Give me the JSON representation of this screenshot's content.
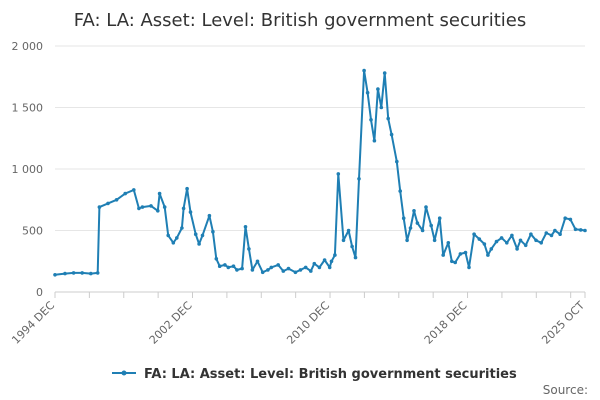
{
  "chart_data": {
    "type": "line",
    "title": "FA: LA: Asset: Level: British government securities",
    "xlabel": "",
    "ylabel": "",
    "ylim": [
      0,
      2000
    ],
    "y_ticks": [
      0,
      500,
      1000,
      1500,
      2000
    ],
    "y_tick_labels": [
      "0",
      "500",
      "1 000",
      "1 500",
      "2 000"
    ],
    "x_tick_labels": [
      "1994 DEC",
      "2002 DEC",
      "2010 DEC",
      "2018 DEC",
      "2025 OCT"
    ],
    "x_tick_positions": [
      1994.917,
      2002.917,
      2010.917,
      2018.917,
      2025.75
    ],
    "xlim": [
      1994.917,
      2025.75
    ],
    "grid": "horizontal",
    "legend_position": "bottom",
    "color": "#1f7fb4",
    "series": [
      {
        "name": "FA: LA: Asset: Level: British government securities",
        "x": [
          1994.917,
          1995.5,
          1996.0,
          1996.5,
          1997.0,
          1997.4,
          1997.5,
          1998.0,
          1998.5,
          1999.0,
          1999.5,
          1999.8,
          2000.0,
          2000.5,
          2000.9,
          2001.0,
          2001.3,
          2001.5,
          2001.8,
          2002.0,
          2002.3,
          2002.4,
          2002.6,
          2002.8,
          2003.1,
          2003.3,
          2003.5,
          2003.9,
          2004.1,
          2004.3,
          2004.5,
          2004.8,
          2005.0,
          2005.3,
          2005.5,
          2005.8,
          2006.0,
          2006.2,
          2006.4,
          2006.7,
          2007.0,
          2007.3,
          2007.5,
          2007.9,
          2008.2,
          2008.5,
          2008.9,
          2009.2,
          2009.5,
          2009.8,
          2010.0,
          2010.3,
          2010.6,
          2010.9,
          2011.0,
          2011.2,
          2011.4,
          2011.7,
          2012.0,
          2012.2,
          2012.4,
          2012.6,
          2012.9,
          2013.1,
          2013.3,
          2013.5,
          2013.7,
          2013.9,
          2014.1,
          2014.3,
          2014.5,
          2014.8,
          2015.0,
          2015.2,
          2015.4,
          2015.6,
          2015.8,
          2016.0,
          2016.3,
          2016.5,
          2016.8,
          2017.0,
          2017.3,
          2017.5,
          2017.8,
          2018.0,
          2018.2,
          2018.5,
          2018.8,
          2019.0,
          2019.3,
          2019.6,
          2019.9,
          2020.1,
          2020.3,
          2020.6,
          2020.9,
          2021.2,
          2021.5,
          2021.8,
          2022.0,
          2022.3,
          2022.6,
          2022.9,
          2023.2,
          2023.5,
          2023.8,
          2024.0,
          2024.3,
          2024.6,
          2024.9,
          2025.2,
          2025.5,
          2025.75
        ],
        "y": [
          140,
          150,
          155,
          155,
          150,
          155,
          690,
          720,
          750,
          800,
          830,
          680,
          690,
          700,
          660,
          800,
          690,
          460,
          400,
          440,
          520,
          680,
          840,
          650,
          470,
          390,
          460,
          620,
          490,
          270,
          210,
          220,
          200,
          210,
          180,
          190,
          530,
          350,
          180,
          250,
          160,
          180,
          200,
          220,
          170,
          190,
          160,
          180,
          200,
          170,
          230,
          200,
          260,
          200,
          250,
          300,
          960,
          420,
          500,
          370,
          280,
          920,
          1800,
          1620,
          1400,
          1230,
          1650,
          1500,
          1780,
          1410,
          1280,
          1060,
          820,
          600,
          420,
          520,
          660,
          560,
          500,
          690,
          540,
          420,
          600,
          300,
          400,
          250,
          240,
          310,
          320,
          200,
          470,
          430,
          390,
          300,
          350,
          410,
          440,
          400,
          460,
          350,
          420,
          380,
          470,
          420,
          400,
          480,
          460,
          500,
          470,
          600,
          590,
          510,
          505,
          500
        ]
      }
    ],
    "legend_label": "FA: LA: Asset: Level: British government securities"
  },
  "footer": {
    "source_label": "Source:"
  }
}
